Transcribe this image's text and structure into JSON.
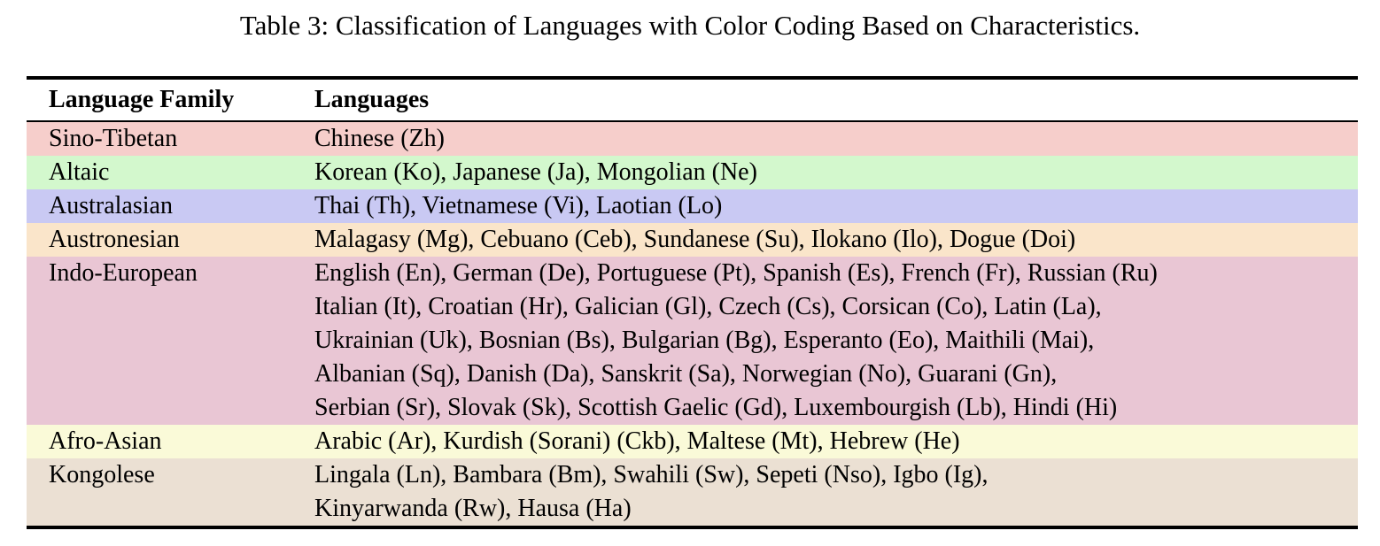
{
  "title": "Table 3: Classification of Languages with Color Coding Based on Characteristics.",
  "table": {
    "columns": [
      "Language Family",
      "Languages"
    ],
    "rows": [
      {
        "family": "Sino-Tibetan",
        "color": "#f6cecb",
        "languages": [
          "Chinese (Zh)"
        ]
      },
      {
        "family": "Altaic",
        "color": "#d3f8cd",
        "languages": [
          "Korean (Ko), Japanese (Ja), Mongolian (Ne)"
        ]
      },
      {
        "family": "Australasian",
        "color": "#c9c9f3",
        "languages": [
          "Thai (Th), Vietnamese (Vi), Laotian (Lo)"
        ]
      },
      {
        "family": "Austronesian",
        "color": "#fae5ca",
        "languages": [
          "Malagasy (Mg), Cebuano (Ceb), Sundanese (Su), Ilokano (Ilo), Dogue (Doi)"
        ]
      },
      {
        "family": "Indo-European",
        "color": "#e9c6d4",
        "languages": [
          "English (En), German (De), Portuguese (Pt), Spanish (Es), French (Fr), Russian (Ru)",
          "Italian (It), Croatian (Hr), Galician (Gl), Czech (Cs), Corsican (Co), Latin (La),",
          "Ukrainian (Uk), Bosnian (Bs), Bulgarian (Bg), Esperanto (Eo), Maithili (Mai),",
          "Albanian (Sq), Danish (Da), Sanskrit (Sa), Norwegian (No), Guarani (Gn),",
          "Serbian (Sr), Slovak (Sk), Scottish Gaelic (Gd), Luxembourgish (Lb), Hindi (Hi)"
        ]
      },
      {
        "family": "Afro-Asian",
        "color": "#fafad8",
        "languages": [
          "Arabic (Ar), Kurdish (Sorani) (Ckb), Maltese (Mt), Hebrew (He)"
        ]
      },
      {
        "family": "Kongolese",
        "color": "#ebe0d3",
        "languages": [
          "Lingala (Ln), Bambara (Bm), Swahili (Sw), Sepeti (Nso), Igbo (Ig),",
          "Kinyarwanda (Rw), Hausa (Ha)"
        ]
      }
    ]
  }
}
